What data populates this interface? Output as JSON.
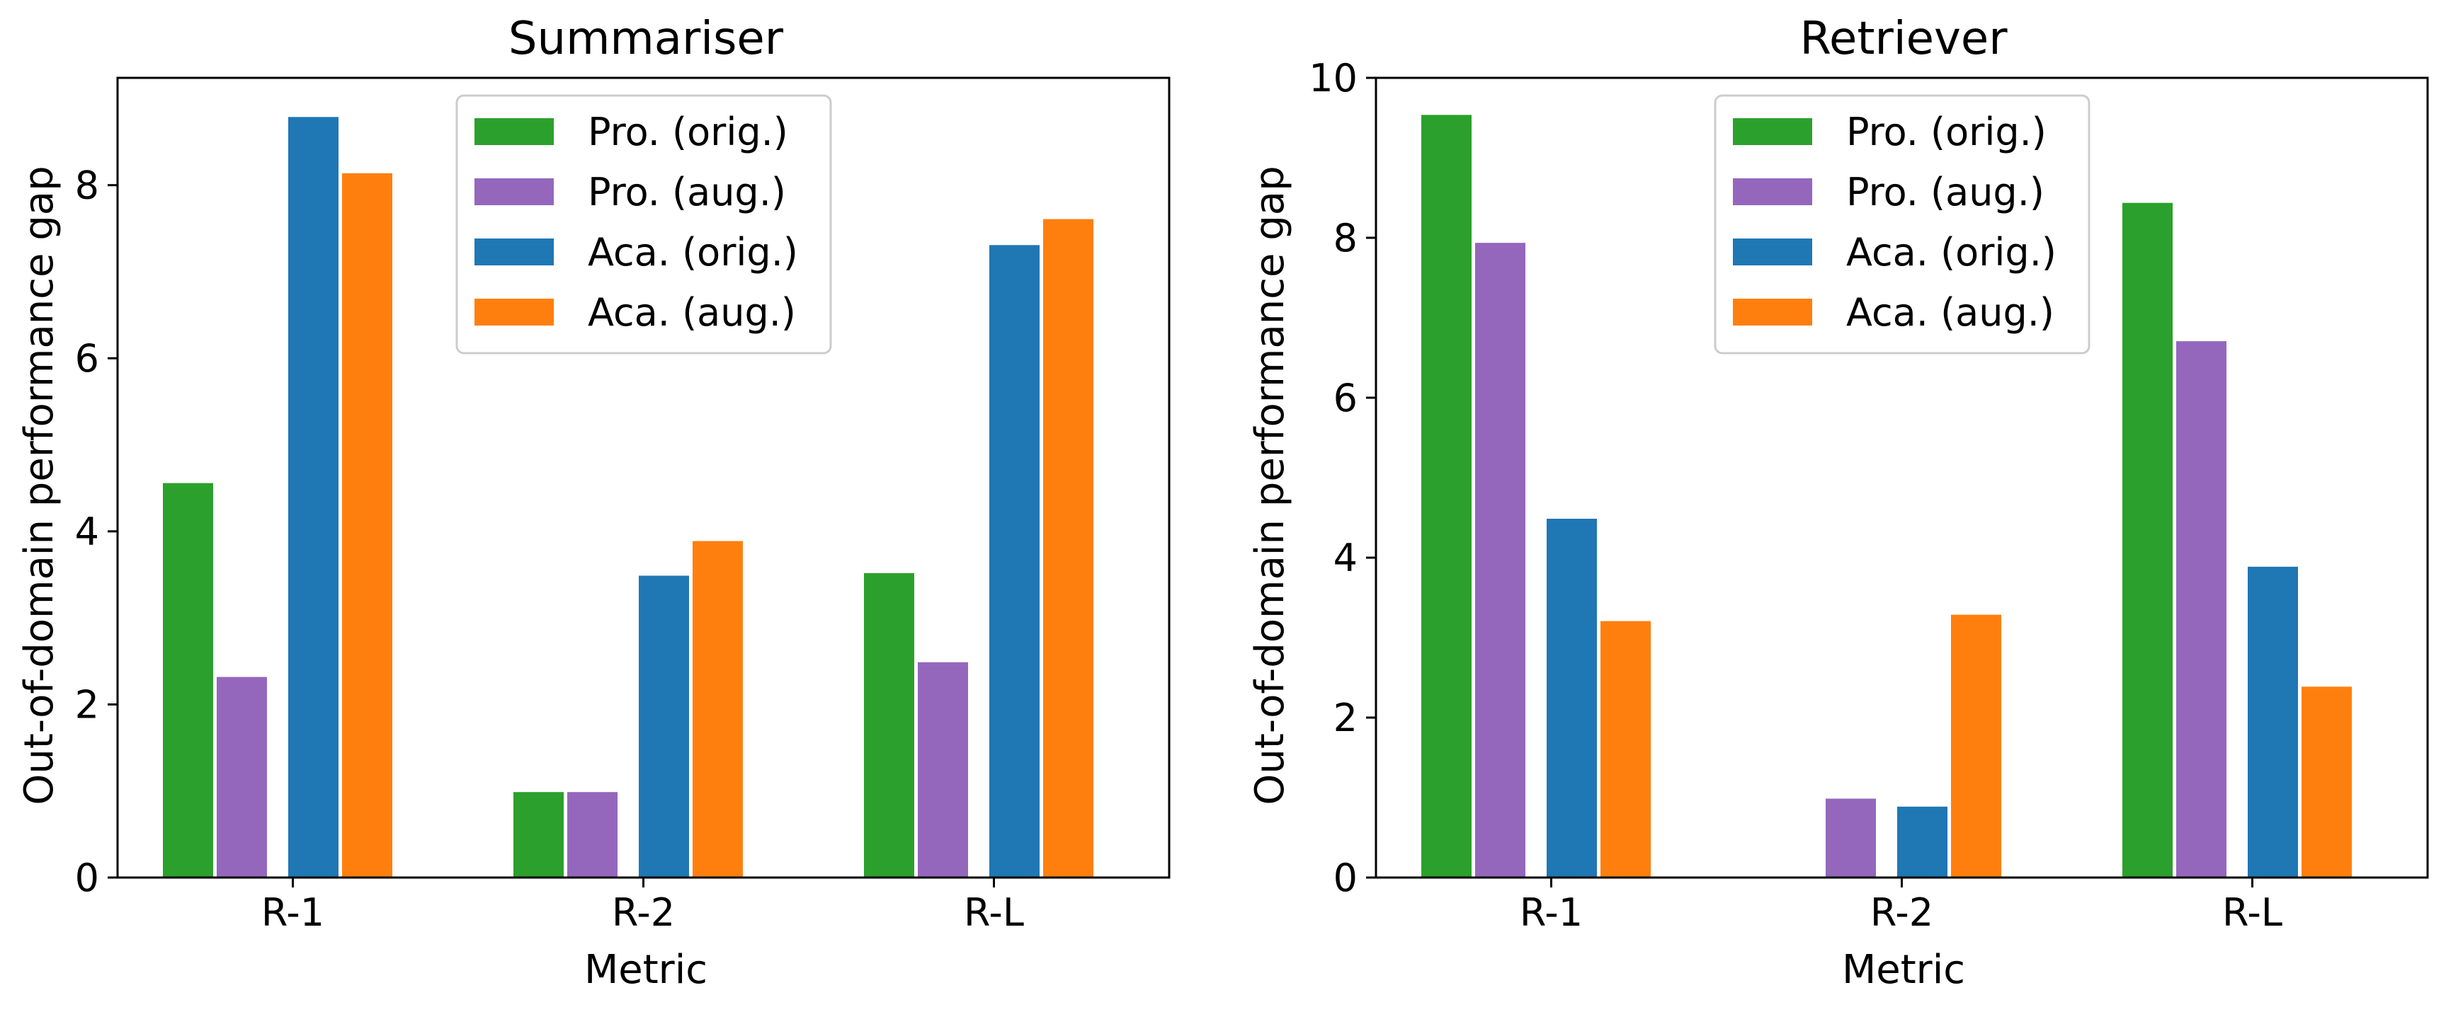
{
  "colors": {
    "pro_orig": "#2ca02c",
    "pro_aug": "#9467bd",
    "aca_orig": "#1f77b4",
    "aca_aug": "#ff7f0e"
  },
  "chart_data": [
    {
      "type": "bar",
      "title": "Summariser",
      "xlabel": "Metric",
      "ylabel": "Out-of-domain performance gap",
      "categories": [
        "R-1",
        "R-2",
        "R-L"
      ],
      "ylim": [
        0,
        9.24
      ],
      "yticks": [
        0,
        2,
        4,
        6,
        8
      ],
      "ytick_labels": [
        "0",
        "2",
        "4",
        "6",
        "8"
      ],
      "legend_position": "top-center",
      "grid": false,
      "series": [
        {
          "name": "Pro. (orig.)",
          "color": "#2ca02c",
          "values": [
            4.57,
            1.0,
            3.53
          ]
        },
        {
          "name": "Pro. (aug.)",
          "color": "#9467bd",
          "values": [
            2.33,
            1.0,
            2.5
          ]
        },
        {
          "name": "Aca. (orig.)",
          "color": "#1f77b4",
          "values": [
            8.8,
            3.5,
            7.32
          ]
        },
        {
          "name": "Aca. (aug.)",
          "color": "#ff7f0e",
          "values": [
            8.15,
            3.9,
            7.62
          ]
        }
      ]
    },
    {
      "type": "bar",
      "title": "Retriever",
      "xlabel": "Metric",
      "ylabel": "Out-of-domain performance gap",
      "categories": [
        "R-1",
        "R-2",
        "R-L"
      ],
      "ylim": [
        0,
        10
      ],
      "yticks": [
        0,
        2,
        4,
        6,
        8,
        10
      ],
      "ytick_labels": [
        "0",
        "2",
        "4",
        "6",
        "8",
        "10"
      ],
      "legend_position": "top-center",
      "grid": false,
      "series": [
        {
          "name": "Pro. (orig.)",
          "color": "#2ca02c",
          "values": [
            9.55,
            0,
            8.45
          ]
        },
        {
          "name": "Pro. (aug.)",
          "color": "#9467bd",
          "values": [
            7.95,
            1.0,
            6.72
          ]
        },
        {
          "name": "Aca. (orig.)",
          "color": "#1f77b4",
          "values": [
            4.5,
            0.9,
            3.9
          ]
        },
        {
          "name": "Aca. (aug.)",
          "color": "#ff7f0e",
          "values": [
            3.22,
            3.3,
            2.4
          ]
        }
      ]
    }
  ]
}
